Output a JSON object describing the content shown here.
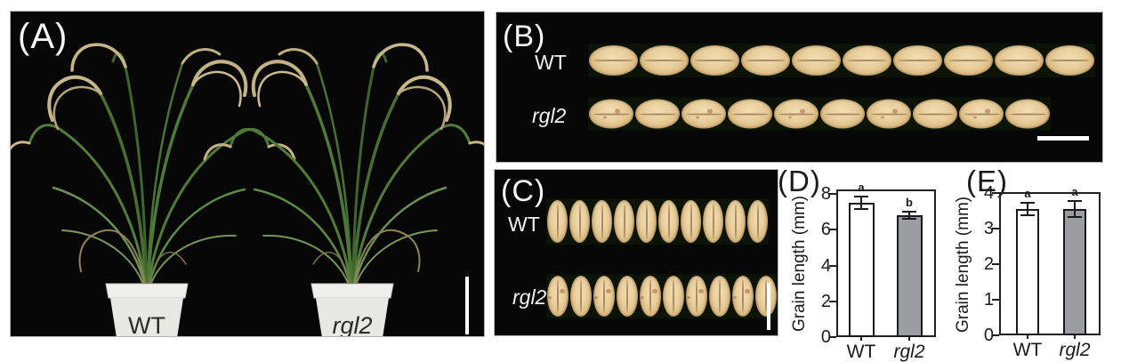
{
  "panels": {
    "a": {
      "label": "(A)",
      "pot_labels": [
        "WT",
        "rgl2"
      ]
    },
    "b": {
      "label": "(B)",
      "rows": [
        {
          "label": "WT",
          "grain_count": 10
        },
        {
          "label": "rgl2",
          "grain_count": 10
        }
      ]
    },
    "c": {
      "label": "(C)",
      "rows": [
        {
          "label": "WT",
          "grain_count": 10
        },
        {
          "label": "rgl2",
          "grain_count": 10
        }
      ]
    },
    "d": {
      "label": "(D)"
    },
    "e": {
      "label": "(E)"
    }
  },
  "chart_data": [
    {
      "id": "D",
      "type": "bar",
      "categories": [
        "WT",
        "rgl2"
      ],
      "italic": [
        false,
        true
      ],
      "values": [
        7.5,
        6.8
      ],
      "errors": [
        0.35,
        0.2
      ],
      "sig_letters": [
        "a",
        "b"
      ],
      "title": "",
      "xlabel": "",
      "ylabel": "Grain length (mm)",
      "ylim": [
        0,
        8
      ],
      "yticks": [
        0,
        2,
        4,
        6,
        8
      ],
      "bar_colors": [
        "#ffffff",
        "#9b9da2"
      ],
      "legend": "none",
      "grid": false
    },
    {
      "id": "E",
      "type": "bar",
      "categories": [
        "WT",
        "rgl2"
      ],
      "italic": [
        false,
        true
      ],
      "values": [
        3.55,
        3.55
      ],
      "errors": [
        0.18,
        0.22
      ],
      "sig_letters": [
        "a",
        "a"
      ],
      "title": "",
      "xlabel": "",
      "ylabel": "Grain length (mm)",
      "ylim": [
        0,
        4
      ],
      "yticks": [
        0,
        1,
        2,
        3,
        4
      ],
      "bar_colors": [
        "#ffffff",
        "#9b9da2"
      ],
      "legend": "none",
      "grid": false
    }
  ],
  "colors": {
    "panel_background": "#070707",
    "scale_bar": "#ffffff",
    "wt_bar_fill": "#ffffff",
    "rgl2_bar_fill": "#9b9da2",
    "axis_color": "#1a1a1a",
    "grain_tone": "#e9cf9e"
  }
}
